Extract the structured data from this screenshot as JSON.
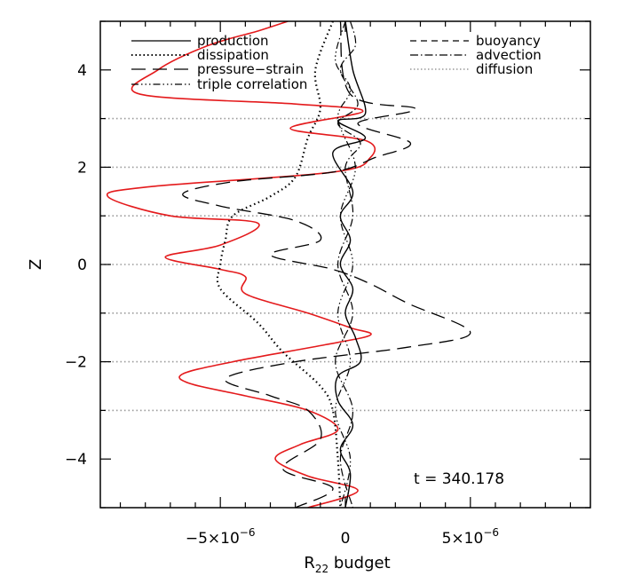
{
  "chart_data": {
    "type": "line",
    "xlabel": {
      "main": "R",
      "sub": "22",
      "rest": " budget"
    },
    "ylabel": "Z",
    "xlim": [
      -9.8e-06,
      9.8e-06
    ],
    "ylim": [
      -5,
      5
    ],
    "x_ticks": [
      {
        "value": -5e-06,
        "label": "−5×10",
        "exp": "−6"
      },
      {
        "value": 0,
        "label": "0",
        "exp": ""
      },
      {
        "value": 5e-06,
        "label": "5×10",
        "exp": "−6"
      }
    ],
    "y_ticks": [
      {
        "value": -4,
        "label": "−4"
      },
      {
        "value": -2,
        "label": "−2"
      },
      {
        "value": 0,
        "label": "0"
      },
      {
        "value": 2,
        "label": "2"
      },
      {
        "value": 4,
        "label": "4"
      }
    ],
    "hgrid_z": [
      3,
      2,
      1,
      0,
      -1,
      -2,
      -3
    ],
    "legend_left": [
      "production",
      "dissipation",
      "pressure−strain",
      "triple correlation"
    ],
    "legend_right": [
      "buoyancy",
      "advection",
      "diffusion"
    ],
    "time_label": "t = 340.178",
    "series": [
      {
        "key": "red",
        "color": "#e41a1c",
        "points": [
          [
            -2.3e-06,
            5
          ],
          [
            -3.5e-06,
            4.8
          ],
          [
            -5.5e-06,
            4.5
          ],
          [
            -7.5e-06,
            4.0
          ],
          [
            -8.2e-06,
            3.5
          ],
          [
            -2e-06,
            3.3
          ],
          [
            7e-07,
            3.15
          ],
          [
            -2.2e-06,
            2.8
          ],
          [
            8e-07,
            2.55
          ],
          [
            1e-06,
            2.2
          ],
          [
            -5e-07,
            1.9
          ],
          [
            -7.8e-06,
            1.6
          ],
          [
            -9.5e-06,
            1.4
          ],
          [
            -7e-06,
            1.0
          ],
          [
            -3.5e-06,
            0.85
          ],
          [
            -5e-06,
            0.4
          ],
          [
            -7.2e-06,
            0.15
          ],
          [
            -5e-06,
            -0.1
          ],
          [
            -4e-06,
            -0.25
          ],
          [
            -4e-06,
            -0.6
          ],
          [
            -1.5e-06,
            -1.0
          ],
          [
            2e-07,
            -1.3
          ],
          [
            1e-06,
            -1.45
          ],
          [
            -8e-07,
            -1.65
          ],
          [
            -4.5e-06,
            -2.0
          ],
          [
            -6.5e-06,
            -2.25
          ],
          [
            -6.2e-06,
            -2.45
          ],
          [
            -4e-06,
            -2.7
          ],
          [
            -1.5e-06,
            -3.0
          ],
          [
            -3e-07,
            -3.4
          ],
          [
            -1.8e-06,
            -3.7
          ],
          [
            -2.8e-06,
            -4.0
          ],
          [
            -1.5e-06,
            -4.35
          ],
          [
            5e-07,
            -4.65
          ],
          [
            -1.5e-06,
            -5.0
          ]
        ]
      },
      {
        "key": "dotted",
        "color": "#000000",
        "points": [
          [
            -5e-07,
            5
          ],
          [
            -1.2e-06,
            4.0
          ],
          [
            -1e-06,
            3.2
          ],
          [
            -1.5e-06,
            2.6
          ],
          [
            -2e-06,
            1.8
          ],
          [
            -3e-06,
            1.4
          ],
          [
            -4.5e-06,
            1.0
          ],
          [
            -4.8e-06,
            0.5
          ],
          [
            -5e-06,
            0
          ],
          [
            -5e-06,
            -0.5
          ],
          [
            -3.5e-06,
            -1.2
          ],
          [
            -2.5e-06,
            -1.8
          ],
          [
            -1e-06,
            -2.5
          ],
          [
            -5e-07,
            -3.0
          ],
          [
            -3e-07,
            -4.0
          ],
          [
            -2e-07,
            -5.0
          ]
        ]
      },
      {
        "key": "longdash",
        "color": "#000000",
        "points": [
          [
            -2e-07,
            5
          ],
          [
            2e-07,
            3.5
          ],
          [
            2.8e-06,
            3.2
          ],
          [
            5e-07,
            2.9
          ],
          [
            2.6e-06,
            2.5
          ],
          [
            1.2e-06,
            2.2
          ],
          [
            -5e-07,
            1.9
          ],
          [
            -4.5e-06,
            1.7
          ],
          [
            -6.5e-06,
            1.45
          ],
          [
            -5e-06,
            1.2
          ],
          [
            -2e-06,
            0.9
          ],
          [
            -1e-06,
            0.5
          ],
          [
            -3e-06,
            0.2
          ],
          [
            -5e-07,
            -0.1
          ],
          [
            1e-06,
            -0.4
          ],
          [
            2.5e-06,
            -0.8
          ],
          [
            5e-06,
            -1.4
          ],
          [
            2.5e-06,
            -1.7
          ],
          [
            -2e-06,
            -2.0
          ],
          [
            -4.8e-06,
            -2.35
          ],
          [
            -3e-06,
            -2.7
          ],
          [
            -1.5e-06,
            -3.0
          ],
          [
            -1e-06,
            -3.6
          ],
          [
            -2.5e-06,
            -4.2
          ],
          [
            -5e-07,
            -4.6
          ],
          [
            -2e-06,
            -5.0
          ]
        ]
      },
      {
        "key": "solid",
        "color": "#000000",
        "points": [
          [
            0,
            5
          ],
          [
            3e-07,
            4.0
          ],
          [
            8e-07,
            3.1
          ],
          [
            -3e-07,
            2.95
          ],
          [
            8e-07,
            2.6
          ],
          [
            -5e-07,
            2.3
          ],
          [
            3e-07,
            1.5
          ],
          [
            -2e-07,
            1.0
          ],
          [
            2e-07,
            0.5
          ],
          [
            -2e-07,
            0
          ],
          [
            3e-07,
            -0.5
          ],
          [
            0,
            -1.0
          ],
          [
            4e-07,
            -1.5
          ],
          [
            6e-07,
            -2.0
          ],
          [
            -3e-07,
            -2.3
          ],
          [
            -3e-07,
            -2.8
          ],
          [
            3e-07,
            -3.3
          ],
          [
            -2e-07,
            -3.8
          ],
          [
            2e-07,
            -4.3
          ],
          [
            0,
            -5.0
          ]
        ]
      },
      {
        "key": "dashdot",
        "color": "#000000",
        "points": [
          [
            2e-07,
            5
          ],
          [
            4e-07,
            4.5
          ],
          [
            -2e-07,
            4.0
          ],
          [
            5e-07,
            3.3
          ],
          [
            -3e-07,
            2.9
          ],
          [
            6e-07,
            2.5
          ],
          [
            0,
            2.0
          ],
          [
            3e-07,
            1.0
          ],
          [
            -3e-07,
            0
          ],
          [
            3e-07,
            -1.0
          ],
          [
            -4e-07,
            -2.0
          ],
          [
            3e-07,
            -3.0
          ],
          [
            -2e-07,
            -4.0
          ],
          [
            3e-07,
            -5.0
          ]
        ]
      },
      {
        "key": "dashdotdot",
        "color": "#000000",
        "points": [
          [
            0,
            5
          ],
          [
            -4e-07,
            4.2
          ],
          [
            2e-07,
            3.6
          ],
          [
            -3e-07,
            3.0
          ],
          [
            4e-07,
            2.0
          ],
          [
            -2e-07,
            1.0
          ],
          [
            3e-07,
            0
          ],
          [
            -3e-07,
            -1.0
          ],
          [
            2e-07,
            -2.0
          ],
          [
            -4e-07,
            -3.0
          ],
          [
            2e-07,
            -4.0
          ],
          [
            -2e-07,
            -5.0
          ]
        ]
      }
    ]
  }
}
